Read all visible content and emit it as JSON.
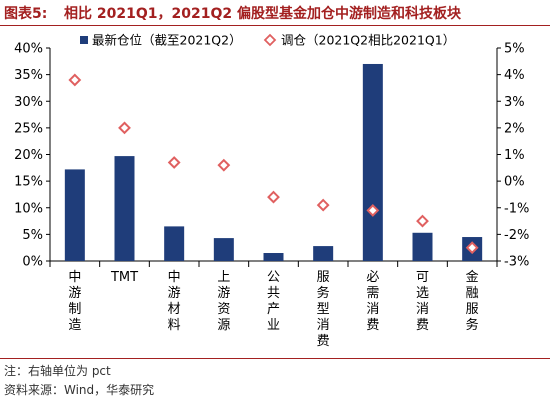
{
  "header": {
    "figure_label": "图表5:",
    "title": "相比 2021Q1，2021Q2 偏股型基金加仓中游制造和科技板块"
  },
  "footer": {
    "note": "注：右轴单位为 pct",
    "source": "资料来源：Wind，华泰研究"
  },
  "colors": {
    "bar": "#1f3d7a",
    "marker": "#e06060",
    "accent": "#a32020"
  },
  "chart_data": {
    "type": "bar",
    "categories": [
      "中游制造",
      "TMT",
      "中游材料",
      "上游资源",
      "公共产业",
      "服务型消费",
      "必需消费",
      "可选消费",
      "金融服务"
    ],
    "category_lines": [
      [
        "中",
        "游",
        "制",
        "造"
      ],
      [
        "TMT"
      ],
      [
        "中",
        "游",
        "材",
        "料"
      ],
      [
        "上",
        "游",
        "资",
        "源"
      ],
      [
        "公",
        "共",
        "产",
        "业"
      ],
      [
        "服",
        "务",
        "型",
        "消",
        "费"
      ],
      [
        "必",
        "需",
        "消",
        "费"
      ],
      [
        "可",
        "选",
        "消",
        "费"
      ],
      [
        "金",
        "融",
        "服",
        "务"
      ]
    ],
    "series": [
      {
        "name": "最新仓位（截至2021Q2）",
        "kind": "bar",
        "axis": "left",
        "values": [
          17.2,
          19.7,
          6.5,
          4.3,
          1.5,
          2.8,
          37.0,
          5.3,
          4.5
        ]
      },
      {
        "name": "调仓（2021Q2相比2021Q1）",
        "kind": "marker",
        "axis": "right",
        "values": [
          3.8,
          2.0,
          0.7,
          0.6,
          -0.6,
          -0.9,
          -1.1,
          -1.5,
          -2.5
        ]
      }
    ],
    "y_left": {
      "min": 0,
      "max": 40,
      "step": 5,
      "ticks": [
        "0%",
        "5%",
        "10%",
        "15%",
        "20%",
        "25%",
        "30%",
        "35%",
        "40%"
      ]
    },
    "y_right": {
      "min": -3,
      "max": 5,
      "step": 1,
      "ticks": [
        "-3%",
        "-2%",
        "-1%",
        "0%",
        "1%",
        "2%",
        "3%",
        "4%",
        "5%"
      ]
    },
    "legend_position": "top",
    "grid": false
  }
}
